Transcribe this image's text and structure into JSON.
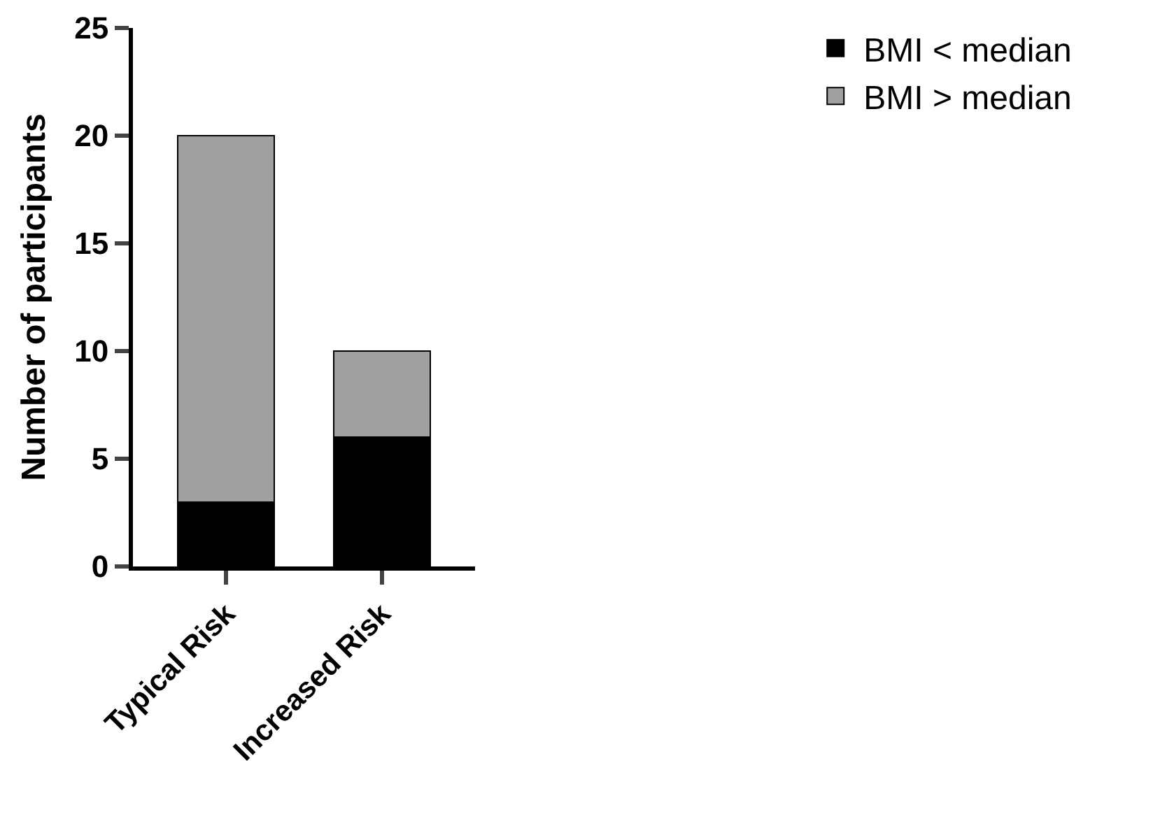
{
  "chart_data": {
    "type": "bar",
    "stacked": true,
    "ylabel": "Number of participants",
    "categories": [
      "Typical Risk",
      "Increased Risk"
    ],
    "series": [
      {
        "name": "BMI < median",
        "color": "#000000",
        "values": [
          3,
          6
        ]
      },
      {
        "name": "BMI > median",
        "color": "#a0a0a0",
        "values": [
          17,
          4
        ]
      }
    ],
    "ylim": [
      0,
      25
    ],
    "yticks": [
      0,
      5,
      10,
      15,
      20,
      25
    ],
    "grid": false,
    "legend": "top right"
  }
}
